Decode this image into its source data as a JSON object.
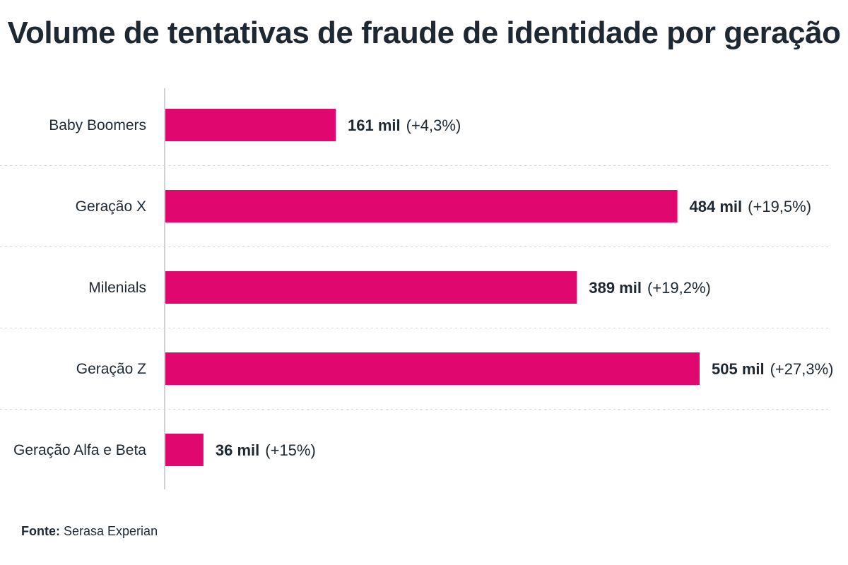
{
  "chart_data": {
    "type": "bar",
    "orientation": "horizontal",
    "title": "Volume de tentativas de fraude de identidade por geração",
    "categories": [
      "Baby Boomers",
      "Geração X",
      "Milenials",
      "Geração Z",
      "Geração Alfa e Beta"
    ],
    "values": [
      161,
      484,
      389,
      505,
      36
    ],
    "value_labels": [
      "161 mil",
      "484 mil",
      "389 mil",
      "505 mil",
      "36 mil"
    ],
    "change_labels": [
      "(+4,3%)",
      "(+19,5%)",
      "(+19,2%)",
      "(+27,3%)",
      "(+15%)"
    ],
    "unit": "mil",
    "xlim": [
      0,
      505
    ],
    "bar_color": "#e0076e",
    "grid": false,
    "legend": "none"
  },
  "source": {
    "label": "Fonte:",
    "text": "Serasa Experian"
  }
}
